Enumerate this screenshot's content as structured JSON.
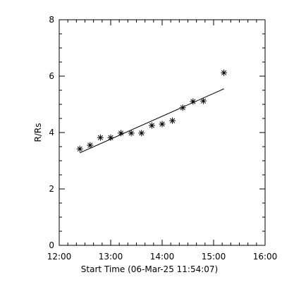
{
  "chart_data": {
    "type": "scatter",
    "title": "",
    "xlabel": "Start Time (06-Mar-25 11:54:07)",
    "ylabel": "R/Rs",
    "xlim": [
      "12:00",
      "16:00"
    ],
    "ylim": [
      0,
      8
    ],
    "x_ticks": [
      "12:00",
      "13:00",
      "14:00",
      "15:00",
      "16:00"
    ],
    "y_ticks": [
      "0",
      "2",
      "4",
      "6",
      "8"
    ],
    "marker": "asterisk",
    "color": "#000000",
    "series": [
      {
        "values": [
          {
            "x": "12:24",
            "y": 3.42
          },
          {
            "x": "12:36",
            "y": 3.55
          },
          {
            "x": "12:48",
            "y": 3.82
          },
          {
            "x": "13:00",
            "y": 3.82
          },
          {
            "x": "13:12",
            "y": 3.98
          },
          {
            "x": "13:24",
            "y": 3.98
          },
          {
            "x": "13:36",
            "y": 3.98
          },
          {
            "x": "13:48",
            "y": 4.25
          },
          {
            "x": "14:00",
            "y": 4.3
          },
          {
            "x": "14:12",
            "y": 4.42
          },
          {
            "x": "14:24",
            "y": 4.88
          },
          {
            "x": "14:36",
            "y": 5.1
          },
          {
            "x": "14:48",
            "y": 5.12
          },
          {
            "x": "15:12",
            "y": 6.12
          }
        ]
      }
    ],
    "fit_line": [
      {
        "x": "12:24",
        "y": 3.28
      },
      {
        "x": "15:12",
        "y": 5.55
      }
    ]
  }
}
